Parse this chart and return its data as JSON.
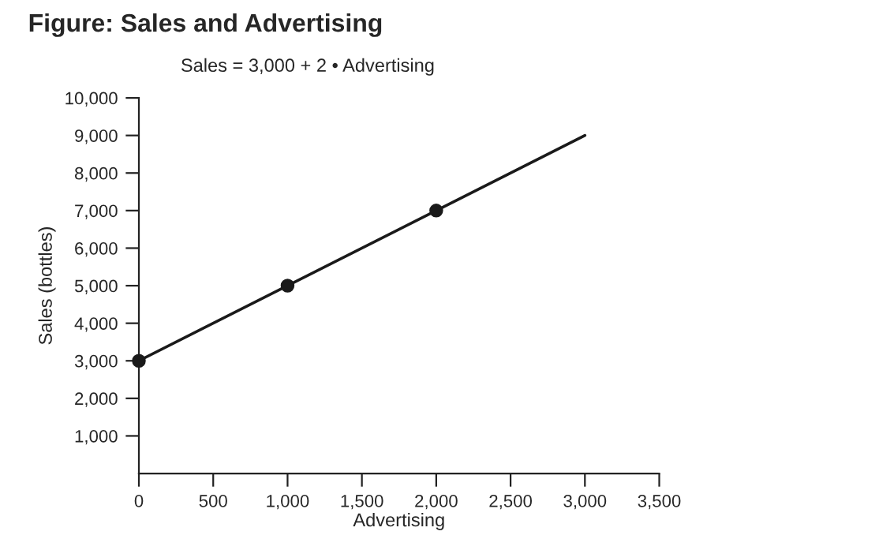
{
  "chart_data": {
    "type": "line",
    "title": "Figure: Sales and Advertising",
    "subtitle": "Sales = 3,000 + 2 • Advertising",
    "xlabel": "Advertising",
    "ylabel": "Sales (bottles)",
    "series": [
      {
        "x": [
          0,
          3000
        ],
        "values": [
          3000,
          9000
        ],
        "color": "#1a1a1a",
        "marker": "none"
      },
      {
        "type": "scatter",
        "x": [
          0,
          1000,
          2000
        ],
        "values": [
          3000,
          5000,
          7000
        ],
        "color": "#1a1a1a",
        "marker": "circle"
      }
    ],
    "xlim": [
      0,
      3500
    ],
    "xticks": [
      0,
      500,
      {
        "value": 1000,
        "label": "1,000"
      },
      {
        "value": 1500,
        "label": "1,500"
      },
      {
        "value": 2000,
        "label": "2,000"
      },
      {
        "value": 2500,
        "label": "2,500"
      },
      {
        "value": 3000,
        "label": "3,000"
      },
      {
        "value": 3500,
        "label": "3,500"
      }
    ],
    "ylim": [
      0,
      10000
    ],
    "yticks": [
      {
        "value": 1000,
        "label": "1,000"
      },
      {
        "value": 2000,
        "label": "2,000"
      },
      {
        "value": 3000,
        "label": "3,000"
      },
      {
        "value": 4000,
        "label": "4,000"
      },
      {
        "value": 5000,
        "label": "5,000"
      },
      {
        "value": 6000,
        "label": "6,000"
      },
      {
        "value": 7000,
        "label": "7,000"
      },
      {
        "value": 8000,
        "label": "8,000"
      },
      {
        "value": 9000,
        "label": "9,000"
      },
      {
        "value": 10000,
        "label": "10,000"
      }
    ],
    "grid": false
  }
}
